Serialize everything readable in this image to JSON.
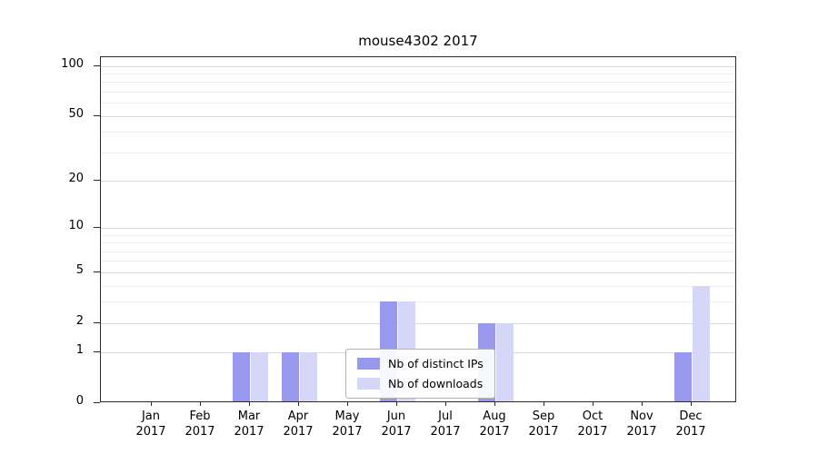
{
  "chart_data": {
    "type": "bar",
    "title": "mouse4302 2017",
    "categories": [
      "Jan",
      "Feb",
      "Mar",
      "Apr",
      "May",
      "Jun",
      "Jul",
      "Aug",
      "Sep",
      "Oct",
      "Nov",
      "Dec"
    ],
    "year": "2017",
    "series": [
      {
        "name": "Nb of distinct IPs",
        "color": "#9898ee",
        "values": [
          0,
          0,
          1,
          1,
          0,
          3,
          0,
          2,
          0,
          0,
          0,
          1
        ]
      },
      {
        "name": "Nb of downloads",
        "color": "#d6d6f8",
        "values": [
          0,
          0,
          1,
          1,
          0,
          3,
          0,
          2,
          0,
          0,
          0,
          4
        ]
      }
    ],
    "xlabel": "",
    "ylabel": "",
    "y_scale": "log1p",
    "ylim": [
      0,
      113
    ],
    "y_ticks": [
      0,
      1,
      2,
      5,
      10,
      20,
      50,
      100
    ],
    "y_minor_ticks": [
      3,
      4,
      6,
      7,
      8,
      9,
      30,
      40,
      60,
      70,
      80,
      90
    ],
    "grid": true,
    "legend_position": "lower center"
  },
  "colors": {
    "grid_major": "#dadada",
    "grid_minor": "#ededed",
    "axis": "#2a2a2a",
    "background": "#ffffff"
  }
}
